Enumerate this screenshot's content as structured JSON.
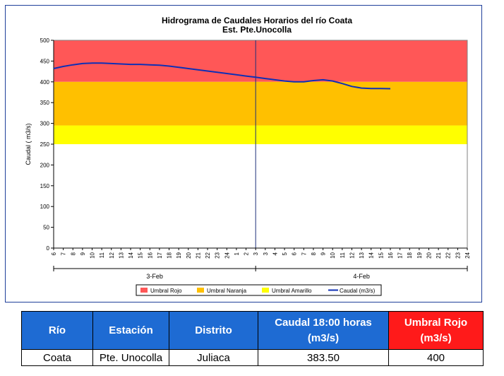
{
  "chart_data": {
    "type": "line",
    "title": "Hidrograma de Caudales Horarios del río Coata",
    "subtitle": "Est. Pte.Unocolla",
    "ylabel": "Caudal ( m3/s)",
    "ylim": [
      0,
      500
    ],
    "yticks": [
      0,
      50,
      100,
      150,
      200,
      250,
      300,
      350,
      400,
      450,
      500
    ],
    "xticks": [
      "6",
      "7",
      "8",
      "9",
      "10",
      "11",
      "12",
      "13",
      "14",
      "15",
      "16",
      "17",
      "18",
      "19",
      "20",
      "21",
      "22",
      "23",
      "24",
      "1",
      "2",
      "3",
      "3",
      "4",
      "5",
      "6",
      "7",
      "8",
      "9",
      "10",
      "11",
      "12",
      "13",
      "14",
      "15",
      "16",
      "17",
      "18",
      "19",
      "20",
      "21",
      "22",
      "23",
      "24"
    ],
    "day_labels": [
      "3-Feb",
      "4-Feb"
    ],
    "day_split_index": 21,
    "bands": [
      {
        "name": "Umbral Rojo",
        "from": 400,
        "to": 500,
        "color": "#ff5757"
      },
      {
        "name": "Umbral Naranja",
        "from": 295,
        "to": 400,
        "color": "#ffc000"
      },
      {
        "name": "Umbral Amarillo",
        "from": 250,
        "to": 295,
        "color": "#ffff00"
      }
    ],
    "series": [
      {
        "name": "Caudal (m3/s)",
        "color": "#0f2fb5",
        "values": [
          432,
          437,
          441,
          444,
          445,
          445,
          444,
          443,
          442,
          442,
          441,
          440,
          438,
          435,
          432,
          429,
          426,
          423,
          420,
          417,
          414,
          411,
          408,
          405,
          402,
          400,
          400,
          403,
          405,
          402,
          396,
          389,
          385,
          384,
          384,
          383.5
        ]
      }
    ],
    "grid": false,
    "legend_position": "bottom"
  },
  "table": {
    "headers": [
      "Río",
      "Estación",
      "Distrito",
      "Caudal 18:00 horas (m3/s)",
      "Umbral Rojo (m3/s)"
    ],
    "row": [
      "Coata",
      "Pte. Unocolla",
      "Juliaca",
      "383.50",
      "400"
    ]
  }
}
